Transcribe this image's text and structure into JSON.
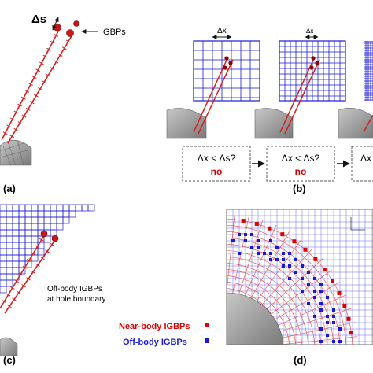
{
  "panels": {
    "a": {
      "label": "(a)",
      "ds_label": "Δs",
      "igbp_label": "IGBPs"
    },
    "b": {
      "label": "(b)",
      "dx_label": "Δx",
      "questions": [
        {
          "text": "Δx < Δs?",
          "answer": "no"
        },
        {
          "text": "Δx < Δs?",
          "answer": "no"
        },
        {
          "text": "Δx",
          "answer": ""
        }
      ]
    },
    "c": {
      "label": "(c)",
      "note_line1": "Off-body IGBPs",
      "note_line2": "at hole boundary"
    },
    "d": {
      "label": "(d)"
    }
  },
  "legend": {
    "items": [
      {
        "label": "Near-body IGBPs",
        "color": "#e00000"
      },
      {
        "label": "Off-body IGBPs",
        "color": "#1a1ad6"
      }
    ]
  },
  "colors": {
    "near_body": "#d42020",
    "off_body": "#1a1ad6",
    "grid_red": "#e04a4a",
    "surface": "#9a9a9a",
    "answer": "#d40000"
  }
}
